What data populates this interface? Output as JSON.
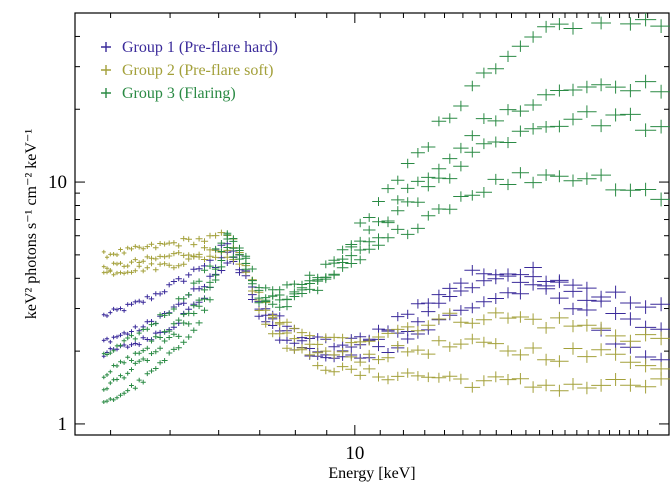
{
  "chart_data": {
    "type": "scatter",
    "xlabel": "Energy [keV]",
    "ylabel": "keV² photons s⁻¹ cm⁻² keV⁻¹",
    "x_scale": "log",
    "y_scale": "log",
    "xlim": [
      3.5,
      32.5
    ],
    "ylim": [
      0.9,
      50
    ],
    "x_ticks": [
      {
        "value": 10,
        "label": "10"
      }
    ],
    "y_ticks": [
      {
        "value": 1,
        "label": "1"
      },
      {
        "value": 10,
        "label": "10"
      }
    ],
    "legend_position": "top-left",
    "series": [
      {
        "name": "Group 1 (Pre-flare hard)",
        "color": "#3a2a9a",
        "marker": "+",
        "curves": [
          {
            "x": [
              3.9,
              4.5,
              5.1,
              5.7,
              6.2,
              6.6,
              7.0,
              7.5,
              8.0,
              8.7,
              9.5,
              10.5,
              12,
              14,
              16,
              19,
              22,
              26,
              30,
              32.5
            ],
            "y": [
              2.8,
              3.2,
              3.8,
              4.6,
              5.6,
              4.6,
              3.2,
              2.7,
              2.4,
              2.2,
              2.1,
              2.3,
              2.8,
              3.6,
              4.2,
              4.4,
              4.0,
              3.4,
              3.0,
              2.9
            ]
          },
          {
            "x": [
              3.9,
              4.5,
              5.1,
              5.7,
              6.2,
              6.6,
              7.0,
              7.5,
              8.0,
              8.7,
              9.5,
              10.5,
              12,
              14,
              16,
              19,
              22,
              26,
              30,
              32.5
            ],
            "y": [
              2.2,
              2.5,
              3.0,
              3.8,
              5.1,
              4.3,
              3.0,
              2.5,
              2.2,
              2.0,
              1.95,
              2.1,
              2.5,
              3.2,
              3.8,
              4.1,
              3.7,
              3.0,
              2.6,
              2.5
            ]
          },
          {
            "x": [
              3.9,
              4.5,
              5.1,
              5.7,
              6.2,
              6.6,
              7.0,
              7.5,
              8.0,
              8.7,
              9.5,
              10.5,
              12,
              14,
              16,
              19,
              22,
              26,
              30,
              32.5
            ],
            "y": [
              1.95,
              2.2,
              2.6,
              3.4,
              4.8,
              4.1,
              2.8,
              2.3,
              2.05,
              1.9,
              1.85,
              1.95,
              2.2,
              2.7,
              3.2,
              3.6,
              3.2,
              2.4,
              1.9,
              1.6
            ]
          }
        ]
      },
      {
        "name": "Group 2 (Pre-flare soft)",
        "color": "#a3a03a",
        "marker": "+",
        "curves": [
          {
            "x": [
              3.9,
              4.5,
              5.1,
              5.7,
              6.2,
              6.6,
              7.0,
              7.5,
              8.0,
              8.7,
              9.5,
              10.5,
              12,
              14,
              16,
              19,
              22,
              26,
              30,
              32.5
            ],
            "y": [
              5.0,
              5.3,
              5.6,
              5.8,
              6.0,
              5.0,
              3.3,
              2.7,
              2.4,
              2.2,
              2.2,
              2.3,
              2.5,
              2.7,
              2.8,
              2.7,
              2.6,
              2.4,
              2.3,
              2.2
            ]
          },
          {
            "x": [
              3.9,
              4.5,
              5.1,
              5.7,
              6.2,
              6.6,
              7.0,
              7.5,
              8.0,
              8.7,
              9.5,
              10.5,
              12,
              14,
              16,
              19,
              22,
              26,
              30,
              32.5
            ],
            "y": [
              4.4,
              4.7,
              5.0,
              5.2,
              5.4,
              4.7,
              3.1,
              2.5,
              2.2,
              2.0,
              1.9,
              1.9,
              2.0,
              2.1,
              2.1,
              2.0,
              1.95,
              1.9,
              1.85,
              1.8
            ]
          },
          {
            "x": [
              3.9,
              4.5,
              5.1,
              5.7,
              6.2,
              6.6,
              7.0,
              7.5,
              8.0,
              8.7,
              9.5,
              10.5,
              12,
              14,
              16,
              19,
              22,
              26,
              30,
              32.5
            ],
            "y": [
              4.2,
              4.4,
              4.6,
              4.9,
              5.1,
              4.5,
              2.9,
              2.3,
              2.0,
              1.8,
              1.65,
              1.6,
              1.6,
              1.55,
              1.5,
              1.45,
              1.45,
              1.45,
              1.45,
              1.45
            ]
          }
        ]
      },
      {
        "name": "Group 3 (Flaring)",
        "color": "#2a8a44",
        "marker": "+",
        "curves": [
          {
            "x": [
              3.9,
              4.5,
              5.1,
              5.7,
              6.2,
              6.6,
              7.0,
              7.5,
              8.0,
              8.7,
              9.5,
              10.5,
              12,
              14,
              16,
              19,
              22,
              26,
              30,
              32.5
            ],
            "y": [
              1.9,
              2.4,
              3.1,
              4.2,
              6.3,
              5.2,
              3.6,
              3.5,
              3.7,
              4.2,
              5.2,
              7.0,
              11,
              18,
              28,
              38,
              46,
              50,
              48,
              44
            ]
          },
          {
            "x": [
              3.9,
              4.5,
              5.1,
              5.7,
              6.2,
              6.6,
              7.0,
              7.5,
              8.0,
              8.7,
              9.5,
              10.5,
              12,
              14,
              16,
              19,
              22,
              26,
              30,
              32.5
            ],
            "y": [
              1.6,
              2.0,
              2.6,
              3.5,
              5.9,
              4.9,
              3.4,
              3.3,
              3.5,
              3.9,
              4.7,
              6.0,
              8.5,
              12.5,
              17,
              21,
              24,
              26,
              24,
              22
            ]
          },
          {
            "x": [
              3.9,
              4.5,
              5.1,
              5.7,
              6.2,
              6.6,
              7.0,
              7.5,
              8.0,
              8.7,
              9.5,
              10.5,
              12,
              14,
              16,
              19,
              22,
              26,
              30,
              32.5
            ],
            "y": [
              1.4,
              1.8,
              2.3,
              3.2,
              5.6,
              4.7,
              3.3,
              3.2,
              3.4,
              3.8,
              4.5,
              5.6,
              7.6,
              10.5,
              14,
              16.5,
              18,
              18.5,
              17.5,
              16
            ]
          },
          {
            "x": [
              3.9,
              4.5,
              5.1,
              5.7,
              6.2,
              6.6,
              7.0,
              7.5,
              8.0,
              8.7,
              9.5,
              10.5,
              12,
              14,
              16,
              19,
              22,
              26,
              30,
              32.5
            ],
            "y": [
              1.2,
              1.5,
              2.0,
              2.9,
              5.3,
              4.5,
              3.2,
              3.1,
              3.3,
              3.6,
              4.2,
              5.0,
              6.3,
              8.0,
              9.5,
              10.5,
              10.8,
              10.2,
              9.3,
              8.6
            ]
          }
        ]
      }
    ]
  }
}
